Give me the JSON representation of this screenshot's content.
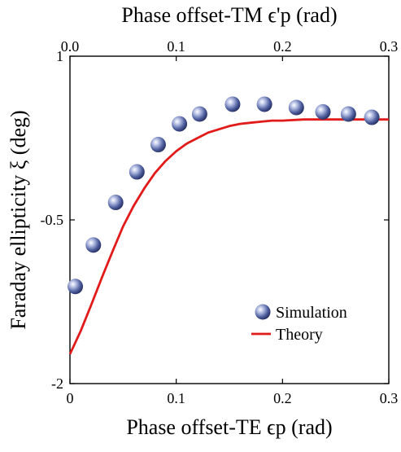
{
  "chart_data": {
    "type": "scatter",
    "title": "",
    "xlabel": "Phase offset-TE ϵp (rad)",
    "xlabel_top": "Phase offset-TM ϵ'p (rad)",
    "ylabel": "Faraday ellipticity ξ (deg)",
    "xlim": [
      0,
      0.3
    ],
    "xlim_top": [
      0,
      0.3
    ],
    "ylim": [
      -2,
      1
    ],
    "x_ticks": [
      "0",
      "0.1",
      "0.2",
      "0.3"
    ],
    "x_ticks_top": [
      "0.0",
      "0.1",
      "0.2",
      "0.3"
    ],
    "y_ticks": [
      "-2",
      "-0.5",
      "1"
    ],
    "grid": false,
    "legend_position": "bottom-right",
    "series": [
      {
        "name": "Simulation",
        "kind": "markers",
        "color": "#4a5a9a",
        "x": [
          0.005,
          0.022,
          0.043,
          0.063,
          0.083,
          0.103,
          0.122,
          0.153,
          0.183,
          0.213,
          0.238,
          0.262,
          0.284
        ],
        "y": [
          -1.11,
          -0.73,
          -0.34,
          -0.06,
          0.19,
          0.38,
          0.47,
          0.56,
          0.56,
          0.53,
          0.49,
          0.47,
          0.44
        ]
      },
      {
        "name": "Theory",
        "kind": "line",
        "color": "#e11a1a",
        "x": [
          0.0,
          0.01,
          0.02,
          0.03,
          0.04,
          0.05,
          0.06,
          0.07,
          0.08,
          0.09,
          0.1,
          0.11,
          0.12,
          0.13,
          0.14,
          0.15,
          0.16,
          0.17,
          0.18,
          0.19,
          0.2,
          0.22,
          0.24,
          0.26,
          0.28,
          0.3
        ],
        "y": [
          -1.73,
          -1.52,
          -1.28,
          -1.03,
          -0.79,
          -0.56,
          -0.37,
          -0.21,
          -0.07,
          0.04,
          0.13,
          0.2,
          0.25,
          0.3,
          0.33,
          0.36,
          0.38,
          0.39,
          0.4,
          0.41,
          0.41,
          0.42,
          0.42,
          0.42,
          0.42,
          0.42
        ]
      }
    ]
  }
}
